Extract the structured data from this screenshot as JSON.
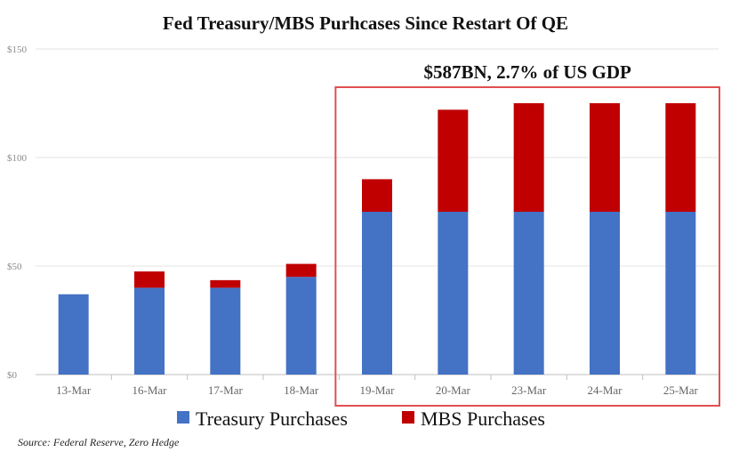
{
  "chart_data": {
    "type": "bar",
    "stacked": true,
    "title": "Fed Treasury/MBS Purhcases Since Restart Of QE",
    "xlabel": "",
    "ylabel": "",
    "ylim": [
      0,
      150
    ],
    "yticks": [
      0,
      50,
      100,
      150
    ],
    "ytick_labels": [
      "$0",
      "$50",
      "$100",
      "$150"
    ],
    "categories": [
      "13-Mar",
      "16-Mar",
      "17-Mar",
      "18-Mar",
      "19-Mar",
      "20-Mar",
      "23-Mar",
      "24-Mar",
      "25-Mar"
    ],
    "series": [
      {
        "name": "Treasury Purchases",
        "color": "#4472c4",
        "values": [
          37,
          40,
          40,
          45,
          75,
          75,
          75,
          75,
          75
        ]
      },
      {
        "name": "MBS Purchases",
        "color": "#c00000",
        "values": [
          0,
          7.5,
          3.5,
          6,
          15,
          47,
          50,
          50,
          50
        ]
      }
    ],
    "grid": true,
    "legend": "bottom",
    "annotation": {
      "text": "$587BN, 2.7% of US GDP",
      "box_color": "#e05050",
      "from_category": "19-Mar",
      "to_category": "25-Mar"
    },
    "source": "Source: Federal Reserve, Zero Hedge"
  }
}
